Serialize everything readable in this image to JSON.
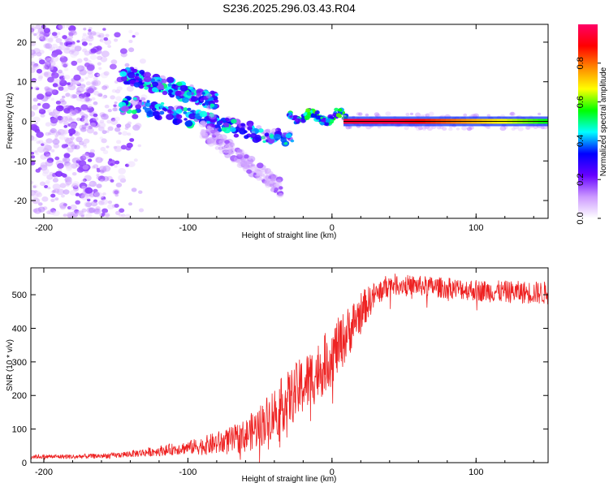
{
  "figure_title": "S236.2025.296.03.43.R04",
  "chart_data": [
    {
      "type": "heatmap",
      "title": "S236.2025.296.03.43.R04",
      "xlabel": "Height of straight line (km)",
      "ylabel": "Frequency (Hz)",
      "xlim": [
        -209,
        150
      ],
      "ylim": [
        -24.5,
        24.5
      ],
      "x_ticks": [
        -200,
        -100,
        0,
        100
      ],
      "y_ticks": [
        -20,
        -10,
        0,
        10,
        20
      ],
      "colorbar": {
        "label": "Normalized spectral amplitude",
        "range": [
          0,
          1
        ],
        "ticks": [
          0.0,
          0.2,
          0.4,
          0.6,
          0.8
        ],
        "colors": [
          "#ffffff",
          "#cc99ff",
          "#6600ff",
          "#0000ff",
          "#00ffff",
          "#00ff00",
          "#ffff00",
          "#ff8800",
          "#ff0000",
          "#ff0066"
        ]
      },
      "features": [
        {
          "name": "Scattered low-amplitude noise",
          "x_range": [
            -209,
            -140
          ],
          "freq_range": [
            -24,
            24
          ],
          "amplitude": 0.1
        },
        {
          "name": "Upper descending band",
          "x_start": -145,
          "x_end": -80,
          "freq_start": 12,
          "freq_end": 5,
          "amplitude": 0.3
        },
        {
          "name": "Lower descending band",
          "x_start": -148,
          "x_end": -25,
          "freq_start": 5,
          "freq_end": -5,
          "amplitude": 0.3
        },
        {
          "name": "Lower diffuse arm",
          "x_start": -90,
          "x_end": -35,
          "freq_start": -2,
          "freq_end": -17,
          "amplitude": 0.1
        },
        {
          "name": "Transition ripple",
          "x_start": -30,
          "x_end": 10,
          "freq": 1,
          "amplitude": 0.4
        },
        {
          "name": "Direct signal line",
          "x_start": 8,
          "x_end": 150,
          "freq": 0,
          "amplitude": 0.95
        }
      ]
    },
    {
      "type": "line",
      "xlabel": "Height of straight line (km)",
      "ylabel": "SNR (10 * v/v)",
      "xlim": [
        -209,
        150
      ],
      "ylim": [
        0,
        580
      ],
      "x_ticks": [
        -200,
        -100,
        0,
        100
      ],
      "y_ticks": [
        0,
        100,
        200,
        300,
        400,
        500
      ],
      "series": [
        {
          "name": "SNR",
          "color": "#ee2222",
          "trend": {
            "x": [
              -209,
              -180,
              -160,
              -150,
              -130,
              -110,
              -90,
              -70,
              -60,
              -50,
              -40,
              -30,
              -20,
              -10,
              0,
              10,
              20,
              30,
              40,
              50,
              80,
              110,
              150
            ],
            "y": [
              18,
              18,
              20,
              22,
              30,
              40,
              50,
              65,
              80,
              110,
              150,
              190,
              230,
              270,
              320,
              380,
              450,
              500,
              530,
              530,
              520,
              510,
              505
            ]
          },
          "noise_amplitude": {
            "x": [
              -209,
              -150,
              -100,
              -60,
              -40,
              -20,
              0,
              10,
              30,
              50,
              150
            ],
            "y": [
              6,
              8,
              20,
              50,
              80,
              90,
              90,
              80,
              40,
              30,
              35
            ]
          }
        }
      ]
    }
  ]
}
